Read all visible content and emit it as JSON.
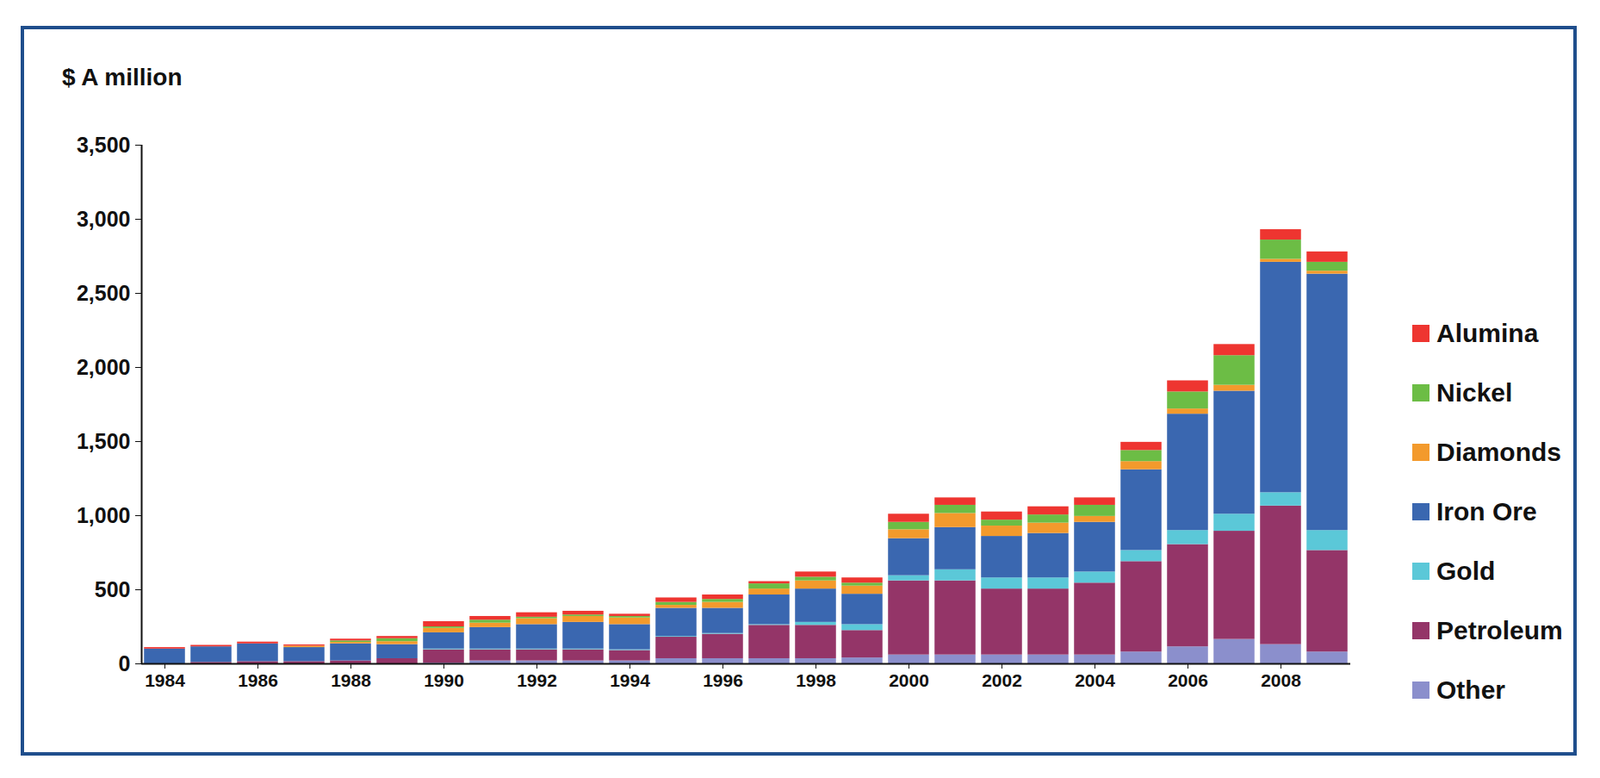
{
  "chart_data": {
    "type": "bar",
    "stacked": true,
    "y_label": "$ A million",
    "legend": "right",
    "grid": false,
    "x": [
      1984,
      1985,
      1986,
      1987,
      1988,
      1989,
      1990,
      1991,
      1992,
      1993,
      1994,
      1995,
      1996,
      1997,
      1998,
      1999,
      2000,
      2001,
      2002,
      2003,
      2004,
      2005,
      2006,
      2007,
      2008,
      2009
    ],
    "xlim": [
      1983.5,
      2009.5
    ],
    "xticks": [
      1984,
      1986,
      1988,
      1990,
      1992,
      1994,
      1996,
      1998,
      2000,
      2002,
      2004,
      2006,
      2008
    ],
    "ylim": [
      0,
      3500
    ],
    "yticks": [
      0,
      500,
      {
        "value": 1000,
        "label": "1,000"
      },
      {
        "value": 1500,
        "label": "1,500"
      },
      {
        "value": 2000,
        "label": "2,000"
      },
      {
        "value": 2500,
        "label": "2,500"
      },
      {
        "value": 3000,
        "label": "3,000"
      },
      {
        "value": 3500,
        "label": "3,500"
      }
    ],
    "series": [
      {
        "name": "Other",
        "color": "#8b8fcc",
        "values": [
          0,
          0,
          0,
          0,
          0,
          0,
          5,
          20,
          20,
          20,
          20,
          35,
          35,
          35,
          35,
          40,
          60,
          60,
          60,
          60,
          60,
          80,
          115,
          165,
          130,
          80
        ]
      },
      {
        "name": "Petroleum",
        "color": "#943568",
        "values": [
          0,
          10,
          15,
          15,
          20,
          35,
          90,
          75,
          75,
          75,
          70,
          145,
          165,
          225,
          225,
          185,
          500,
          500,
          445,
          445,
          485,
          610,
          690,
          730,
          935,
          685
        ]
      },
      {
        "name": "Gold",
        "color": "#5bc8d8",
        "values": [
          0,
          0,
          0,
          0,
          0,
          0,
          5,
          5,
          5,
          5,
          5,
          5,
          5,
          5,
          20,
          40,
          35,
          75,
          75,
          75,
          75,
          75,
          95,
          115,
          90,
          135
        ]
      },
      {
        "name": "Iron Ore",
        "color": "#3a67b0",
        "values": [
          100,
          105,
          120,
          95,
          115,
          95,
          110,
          145,
          165,
          180,
          170,
          190,
          170,
          200,
          225,
          205,
          250,
          285,
          280,
          300,
          335,
          545,
          785,
          830,
          1555,
          1730
        ]
      },
      {
        "name": "Diamonds",
        "color": "#f39a2c",
        "values": [
          0,
          0,
          0,
          10,
          10,
          20,
          30,
          30,
          40,
          40,
          45,
          20,
          40,
          40,
          55,
          55,
          60,
          95,
          70,
          70,
          40,
          55,
          35,
          40,
          20,
          20
        ]
      },
      {
        "name": "Nickel",
        "color": "#6cbd45",
        "values": [
          0,
          0,
          0,
          0,
          10,
          20,
          10,
          20,
          10,
          10,
          10,
          20,
          20,
          35,
          25,
          20,
          50,
          55,
          40,
          55,
          75,
          75,
          115,
          200,
          130,
          60
        ]
      },
      {
        "name": "Alumina",
        "color": "#ee3530",
        "values": [
          10,
          10,
          12,
          8,
          12,
          15,
          35,
          25,
          30,
          25,
          15,
          30,
          30,
          15,
          35,
          35,
          55,
          50,
          55,
          55,
          50,
          55,
          75,
          75,
          70,
          70
        ]
      }
    ]
  }
}
